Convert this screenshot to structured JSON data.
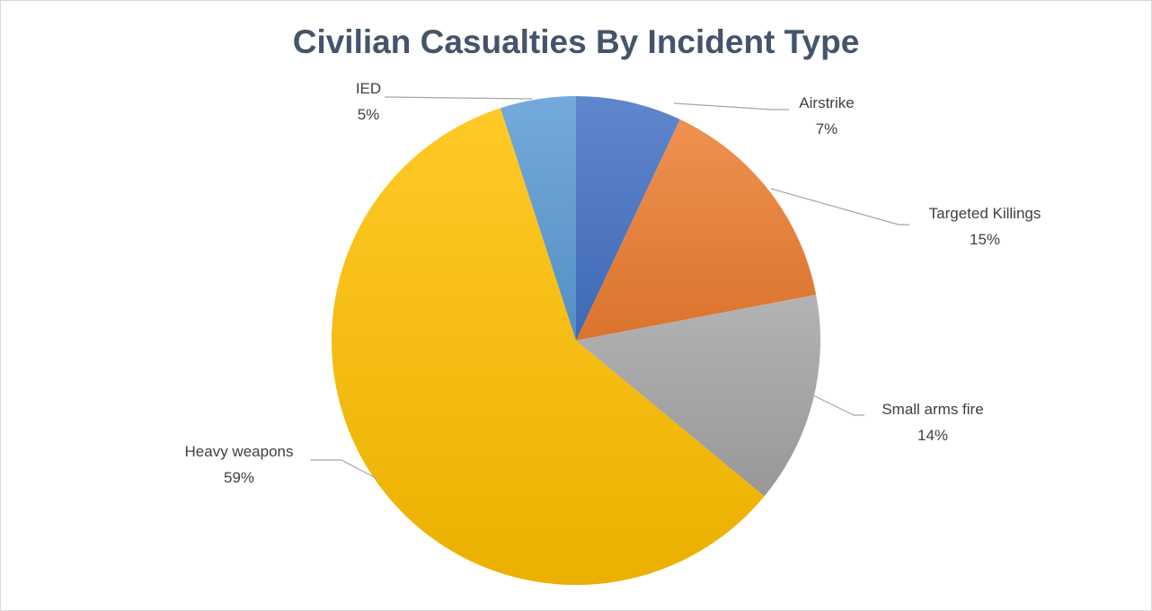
{
  "chart_data": {
    "type": "pie",
    "title": "Civilian Casualties By Incident Type",
    "slices": [
      {
        "label": "Airstrike",
        "value": 7,
        "value_label": "7%",
        "color": "#4472c4"
      },
      {
        "label": "Targeted Killings",
        "value": 15,
        "value_label": "15%",
        "color": "#ed7d31"
      },
      {
        "label": "Small arms fire",
        "value": 14,
        "value_label": "14%",
        "color": "#a5a5a5"
      },
      {
        "label": "Heavy weapons",
        "value": 59,
        "value_label": "59%",
        "color": "#ffc000"
      },
      {
        "label": "IED",
        "value": 5,
        "value_label": "5%",
        "color": "#5b9bd5"
      }
    ],
    "start_position": "top",
    "direction": "clockwise",
    "legend": "none",
    "data_labels": "outside with leader lines"
  }
}
